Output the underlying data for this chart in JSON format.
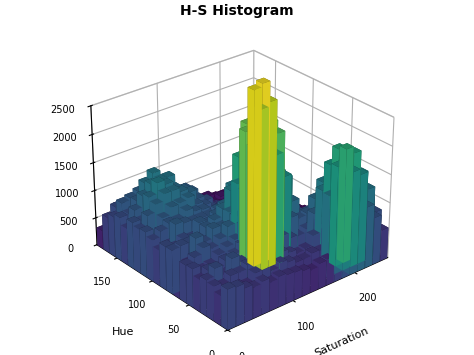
{
  "title": "H-S Histogram",
  "xlabel": "Saturation",
  "ylabel": "Hue",
  "zlabel": "",
  "hue_bins": 20,
  "sat_bins": 20,
  "hue_max": 180,
  "sat_max": 256,
  "zlim": [
    0,
    2500
  ],
  "zticks": [
    0,
    500,
    1000,
    1500,
    2000,
    2500
  ],
  "sat_ticks": [
    0,
    100,
    200
  ],
  "hue_ticks": [
    0,
    50,
    100,
    150
  ],
  "colormap": "viridis",
  "background_color": "#ffffff",
  "elev": 28,
  "azim": -130
}
